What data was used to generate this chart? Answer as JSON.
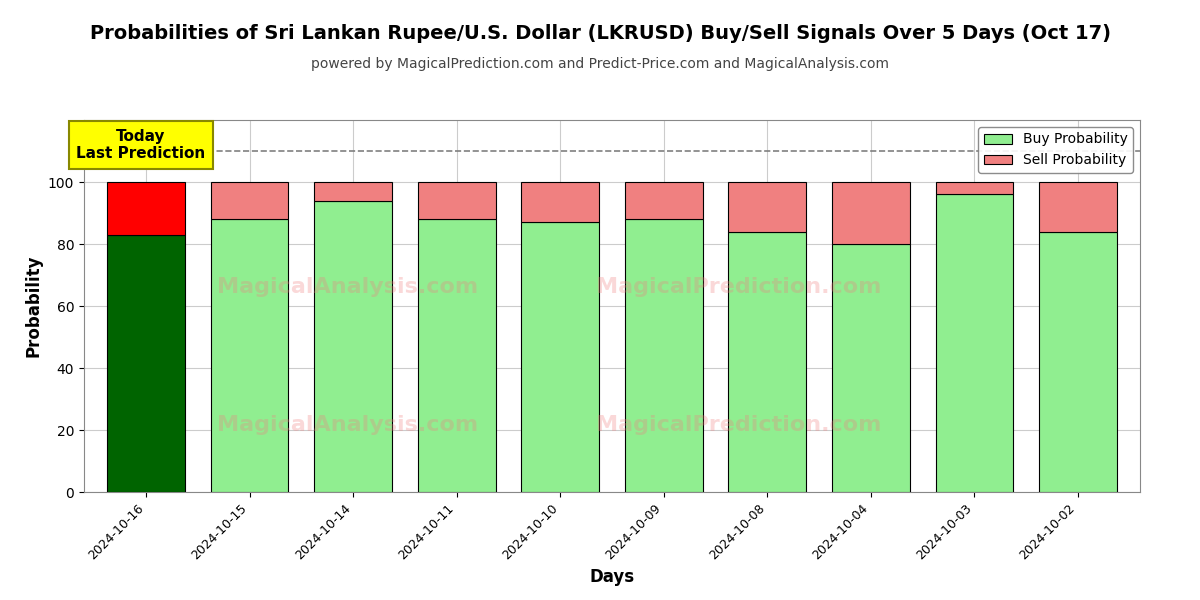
{
  "title": "Probabilities of Sri Lankan Rupee/U.S. Dollar (LKRUSD) Buy/Sell Signals Over 5 Days (Oct 17)",
  "subtitle": "powered by MagicalPrediction.com and Predict-Price.com and MagicalAnalysis.com",
  "xlabel": "Days",
  "ylabel": "Probability",
  "dates": [
    "2024-10-16",
    "2024-10-15",
    "2024-10-14",
    "2024-10-11",
    "2024-10-10",
    "2024-10-09",
    "2024-10-08",
    "2024-10-04",
    "2024-10-03",
    "2024-10-02"
  ],
  "buy_values": [
    83,
    88,
    94,
    88,
    87,
    88,
    84,
    80,
    96,
    84
  ],
  "sell_values": [
    17,
    12,
    6,
    12,
    13,
    12,
    16,
    20,
    4,
    16
  ],
  "buy_colors": [
    "#006400",
    "#90EE90",
    "#90EE90",
    "#90EE90",
    "#90EE90",
    "#90EE90",
    "#90EE90",
    "#90EE90",
    "#90EE90",
    "#90EE90"
  ],
  "sell_colors": [
    "#FF0000",
    "#F08080",
    "#F08080",
    "#F08080",
    "#F08080",
    "#F08080",
    "#F08080",
    "#F08080",
    "#F08080",
    "#F08080"
  ],
  "today_label": "Today\nLast Prediction",
  "today_index": 0,
  "ylim": [
    0,
    120
  ],
  "dashed_line_y": 110,
  "yticks": [
    0,
    20,
    40,
    60,
    80,
    100
  ],
  "legend_buy_color": "#90EE90",
  "legend_sell_color": "#F08080",
  "watermark1": "MagicalAnalysis.com",
  "watermark2": "MagicalPrediction.com",
  "background_color": "#ffffff",
  "grid_color": "#cccccc",
  "title_fontsize": 14,
  "subtitle_fontsize": 10,
  "bar_edge_color": "#000000",
  "bar_width": 0.75
}
